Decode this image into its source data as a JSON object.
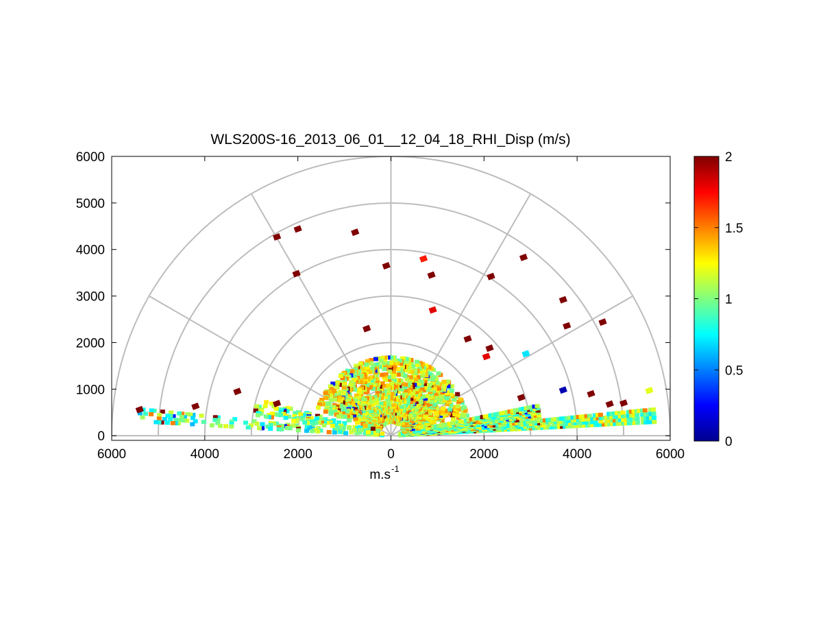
{
  "chart_data": {
    "type": "heatmap",
    "subtype": "polar-rhi-scan",
    "title": "WLS200S-16_2013_06_01__12_04_18_RHI_Disp (m/s)",
    "xlabel": "m.s",
    "xlabel_superscript": "-1",
    "ylabel": "",
    "x_ticks": [
      "6000",
      "4000",
      "2000",
      "0",
      "2000",
      "4000",
      "6000"
    ],
    "y_ticks": [
      "0",
      "1000",
      "2000",
      "3000",
      "4000",
      "5000",
      "6000"
    ],
    "xlim": [
      -6000,
      6000
    ],
    "ylim": [
      -100,
      6000
    ],
    "polar_rings": [
      1000,
      2000,
      3000,
      4000,
      5000,
      6000
    ],
    "polar_spokes_deg": [
      0,
      30,
      60,
      90,
      120,
      150,
      180
    ],
    "grid": true,
    "colormap": "jet",
    "colorbar": {
      "min": 0,
      "max": 2,
      "ticks": [
        "0",
        "0.5",
        "1",
        "1.5",
        "2"
      ]
    },
    "scan_layers": [
      {
        "elev_deg": [
          3,
          6
        ],
        "range_m": [
          200,
          5700
        ],
        "typical_value": 1.0
      },
      {
        "elev_deg": [
          174,
          177
        ],
        "range_m": [
          200,
          5500
        ],
        "typical_value": 0.9
      },
      {
        "elev_deg": [
          7,
          12
        ],
        "range_m": [
          200,
          3200
        ],
        "typical_value": 1.0
      },
      {
        "elev_deg": [
          165,
          172
        ],
        "range_m": [
          200,
          3000
        ],
        "typical_value": 1.0
      },
      {
        "elev_deg": [
          15,
          160
        ],
        "range_m": [
          300,
          1700
        ],
        "typical_value": 1.2
      }
    ],
    "points": [
      {
        "x": -5400,
        "y": 560,
        "v": 2.0
      },
      {
        "x": -4200,
        "y": 630,
        "v": 2.0
      },
      {
        "x": -3300,
        "y": 950,
        "v": 2.0
      },
      {
        "x": -2450,
        "y": 690,
        "v": 2.0
      },
      {
        "x": -2450,
        "y": 4270,
        "v": 2.0
      },
      {
        "x": -2000,
        "y": 4440,
        "v": 2.0
      },
      {
        "x": -2030,
        "y": 3480,
        "v": 2.0
      },
      {
        "x": -770,
        "y": 4370,
        "v": 2.0
      },
      {
        "x": -520,
        "y": 2300,
        "v": 2.0
      },
      {
        "x": -100,
        "y": 3650,
        "v": 2.0
      },
      {
        "x": 700,
        "y": 3800,
        "v": 1.7
      },
      {
        "x": 870,
        "y": 3450,
        "v": 2.0
      },
      {
        "x": 900,
        "y": 2700,
        "v": 1.8
      },
      {
        "x": 1650,
        "y": 2080,
        "v": 2.0
      },
      {
        "x": 2050,
        "y": 1700,
        "v": 1.8
      },
      {
        "x": 2120,
        "y": 1880,
        "v": 2.0
      },
      {
        "x": 2150,
        "y": 3420,
        "v": 2.0
      },
      {
        "x": 2850,
        "y": 3830,
        "v": 2.0
      },
      {
        "x": 3700,
        "y": 2920,
        "v": 2.0
      },
      {
        "x": 3780,
        "y": 2360,
        "v": 2.0
      },
      {
        "x": 4550,
        "y": 2440,
        "v": 2.0
      },
      {
        "x": 2900,
        "y": 1760,
        "v": 0.7
      },
      {
        "x": 4700,
        "y": 680,
        "v": 2.0
      },
      {
        "x": 5000,
        "y": 700,
        "v": 2.0
      },
      {
        "x": 5550,
        "y": 970,
        "v": 1.2
      },
      {
        "x": 3700,
        "y": 980,
        "v": 0.1
      },
      {
        "x": 2800,
        "y": 820,
        "v": 2.0
      },
      {
        "x": 4300,
        "y": 900,
        "v": 2.0
      }
    ]
  }
}
